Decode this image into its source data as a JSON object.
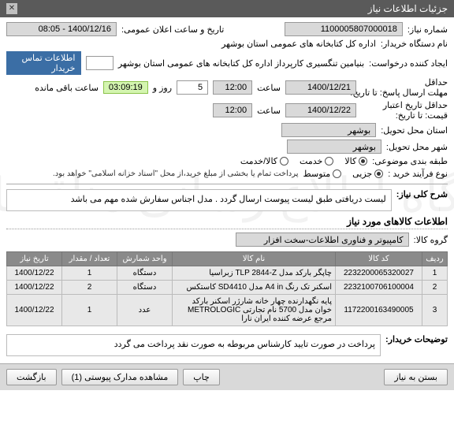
{
  "header": {
    "title": "جزئیات اطلاعات نیاز"
  },
  "fields": {
    "need_no_label": "شماره نیاز:",
    "need_no": "1100005807000018",
    "announce_label": "تاریخ و ساعت اعلان عمومی:",
    "announce_value": "1400/12/16 - 08:05",
    "buyer_label": "نام دستگاه خریدار:",
    "buyer_value": "اداره کل کتابخانه های عمومی استان بوشهر",
    "creator_label": "ایجاد کننده درخواست:",
    "creator_value": "بنیامین تنگسیری کارپرداز اداره کل کتابخانه های عمومی استان بوشهر",
    "contact_btn": "اطلاعات تماس خریدار",
    "deadline_label": "حداقل",
    "deadline_sub": "مهلت ارسال پاسخ: تا تاریخ:",
    "deadline_date": "1400/12/21",
    "saat": "ساعت",
    "deadline_time": "12:00",
    "days": "5",
    "rooz_va": "روز و",
    "time_left": "03:09:19",
    "time_left_suffix": "ساعت باقی مانده",
    "validity_label": "حداقل تاریخ اعتبار",
    "validity_sub": "قیمت: تا تاریخ:",
    "validity_date": "1400/12/22",
    "validity_time": "12:00",
    "province_label": "استان محل تحویل:",
    "province": "بوشهر",
    "city_label": "شهر محل تحویل:",
    "city": "بوشهر",
    "topic_label": "طبقه بندی موضوعی:",
    "topic_o1": "کالا",
    "topic_o2": "خدمت",
    "topic_o3": "کالا/خدمت",
    "process_label": "نوع فرآیند خرید :",
    "process_o1": "جزیی",
    "process_o2": "متوسط",
    "process_note": "پرداخت تمام یا بخشی از مبلغ خرید،از محل \"اسناد خزانه اسلامی\" خواهد بود.",
    "summary_label": "شرح کلی نیاز:",
    "summary_text": "لیست دریافتی طبق لیست پیوست ارسال گردد . مدل اجناس سفارش شده مهم می باشد",
    "items_title": "اطلاعات کالاهای مورد نیاز",
    "group_label": "گروه کالا:",
    "group_value": "کامپیوتر و فناوری اطلاعات-سخت افزار",
    "cols": {
      "idx": "ردیف",
      "code": "کد کالا",
      "name": "نام کالا",
      "unit": "واحد شمارش",
      "qty": "تعداد / مقدار",
      "date": "تاریخ نیاز"
    },
    "rows": [
      {
        "idx": "1",
        "code": "2232200065320027",
        "name": "چاپگر بارکد مدل TLP 2844-Z زبراسیا",
        "unit": "دستگاه",
        "qty": "1",
        "date": "1400/12/22"
      },
      {
        "idx": "2",
        "code": "2232100706100004",
        "name": "اسکنر تک رنگ A4 in مدل SD4410 کاستکس",
        "unit": "دستگاه",
        "qty": "2",
        "date": "1400/12/22"
      },
      {
        "idx": "3",
        "code": "1172200163490005",
        "name": "پایه نگهدارنده چهار خانه شارژر اسکنر بارکد خوان مدل 5700 نام تجارتی METROLOGIC مرجع عرضه کننده ایران نارا",
        "unit": "عدد",
        "qty": "1",
        "date": "1400/12/22"
      }
    ],
    "buyer_note_label": "توضیحات خریدار:",
    "buyer_note": "پرداخت در صورت تایید کارشناس مربوطه  به صورت نقد پرداخت می گردد"
  },
  "footer": {
    "back": "بازگشت",
    "attach": "مشاهده مدارک پیوستی (1)",
    "print": "چاپ",
    "close": "بستن به نیاز"
  }
}
